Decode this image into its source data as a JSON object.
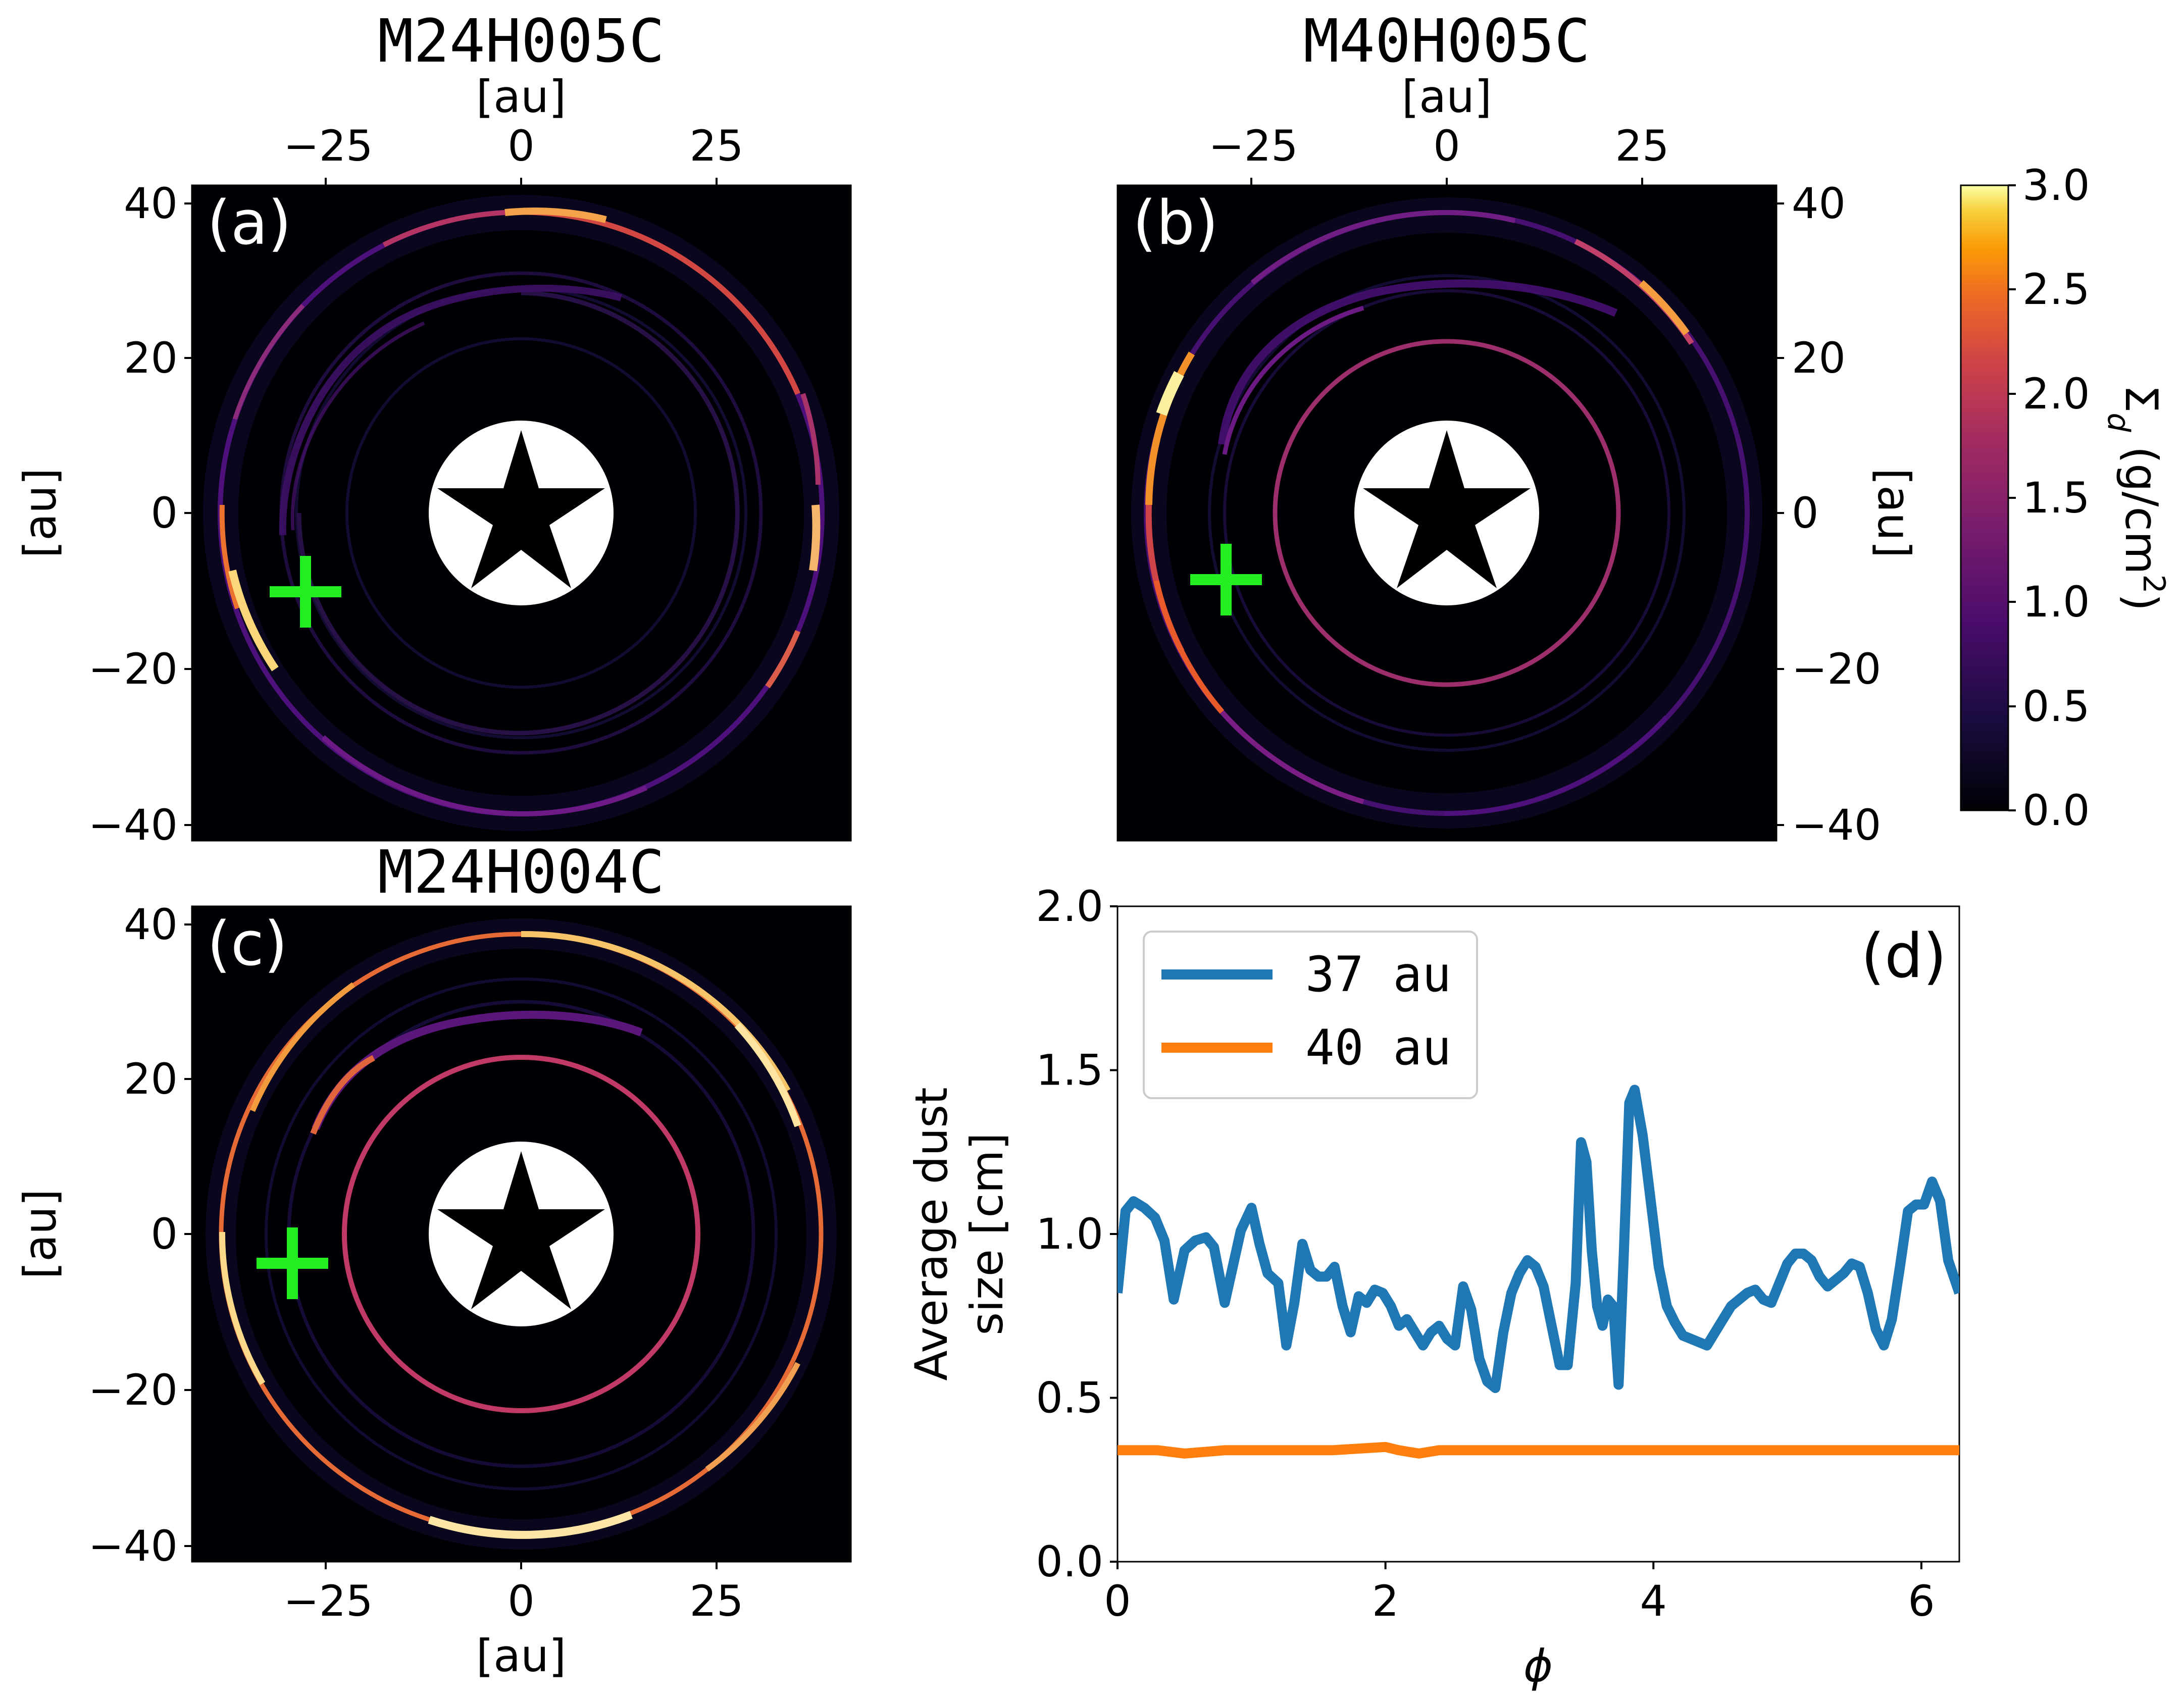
{
  "figure": {
    "panels": [
      {
        "id": "a",
        "label": "(a)",
        "title": "M24H005C",
        "type": "heatmap",
        "xlabel": "[au]",
        "ylabel": "[au]",
        "x_ticks": [
          "−25",
          "0",
          "25"
        ],
        "y_ticks": [
          "40",
          "20",
          "0",
          "−20",
          "−40"
        ],
        "marker": {
          "x": -27.5,
          "y": -10,
          "symbol": "+"
        },
        "planet_x": -27.5
      },
      {
        "id": "b",
        "label": "(b)",
        "title": "M40H005C",
        "type": "heatmap",
        "xlabel": "[au]",
        "ylabel": "[au]",
        "x_ticks": [
          "−25",
          "0",
          "25"
        ],
        "y_ticks": [
          "40",
          "20",
          "0",
          "−20",
          "−40"
        ],
        "marker": {
          "x": -28,
          "y": -8.5,
          "symbol": "+"
        }
      },
      {
        "id": "c",
        "label": "(c)",
        "title": "M24H004C",
        "type": "heatmap",
        "xlabel": "[au]",
        "ylabel": "[au]",
        "x_ticks": [
          "−25",
          "0",
          "25"
        ],
        "y_ticks": [
          "40",
          "20",
          "0",
          "−20",
          "−40"
        ],
        "marker": {
          "x": -29,
          "y": -3.5,
          "symbol": "+"
        }
      }
    ],
    "colorbar": {
      "label": "Σd (g/cm²)",
      "label_main": "Σ",
      "label_sub": "d",
      "label_rest": " (g/cm",
      "label_sup": "2",
      "label_end": ")",
      "min": 0.0,
      "max": 3.0,
      "ticks": [
        "0.0",
        "0.5",
        "1.0",
        "1.5",
        "2.0",
        "2.5",
        "3.0"
      ],
      "colormap": "inferno"
    }
  },
  "chart_data": {
    "type": "line",
    "label": "(d)",
    "xlabel": "ϕ",
    "ylabel_line1": "Average dust",
    "ylabel_line2": "size [cm]",
    "xlim": [
      0,
      6.283
    ],
    "ylim": [
      0.0,
      2.0
    ],
    "x_ticks": [
      "0",
      "2",
      "4",
      "6"
    ],
    "y_ticks": [
      "0.0",
      "0.5",
      "1.0",
      "1.5",
      "2.0"
    ],
    "legend_position": "top-left",
    "series": [
      {
        "name": "37 au",
        "color": "#1f77b4",
        "points": [
          [
            0.0,
            0.82
          ],
          [
            0.06,
            1.07
          ],
          [
            0.12,
            1.1
          ],
          [
            0.2,
            1.08
          ],
          [
            0.28,
            1.05
          ],
          [
            0.35,
            0.98
          ],
          [
            0.42,
            0.8
          ],
          [
            0.5,
            0.95
          ],
          [
            0.58,
            0.98
          ],
          [
            0.66,
            0.99
          ],
          [
            0.72,
            0.96
          ],
          [
            0.8,
            0.79
          ],
          [
            0.86,
            0.9
          ],
          [
            0.92,
            1.01
          ],
          [
            1.0,
            1.08
          ],
          [
            1.06,
            0.97
          ],
          [
            1.12,
            0.88
          ],
          [
            1.2,
            0.85
          ],
          [
            1.26,
            0.66
          ],
          [
            1.32,
            0.79
          ],
          [
            1.38,
            0.97
          ],
          [
            1.44,
            0.89
          ],
          [
            1.5,
            0.87
          ],
          [
            1.56,
            0.87
          ],
          [
            1.62,
            0.9
          ],
          [
            1.68,
            0.78
          ],
          [
            1.74,
            0.7
          ],
          [
            1.8,
            0.81
          ],
          [
            1.86,
            0.79
          ],
          [
            1.92,
            0.83
          ],
          [
            1.98,
            0.82
          ],
          [
            2.04,
            0.78
          ],
          [
            2.1,
            0.72
          ],
          [
            2.16,
            0.74
          ],
          [
            2.22,
            0.7
          ],
          [
            2.28,
            0.66
          ],
          [
            2.34,
            0.7
          ],
          [
            2.4,
            0.72
          ],
          [
            2.46,
            0.68
          ],
          [
            2.52,
            0.66
          ],
          [
            2.58,
            0.84
          ],
          [
            2.64,
            0.77
          ],
          [
            2.7,
            0.62
          ],
          [
            2.76,
            0.55
          ],
          [
            2.82,
            0.53
          ],
          [
            2.88,
            0.7
          ],
          [
            2.94,
            0.82
          ],
          [
            3.0,
            0.88
          ],
          [
            3.06,
            0.92
          ],
          [
            3.12,
            0.9
          ],
          [
            3.18,
            0.84
          ],
          [
            3.24,
            0.72
          ],
          [
            3.3,
            0.6
          ],
          [
            3.36,
            0.6
          ],
          [
            3.42,
            0.85
          ],
          [
            3.46,
            1.28
          ],
          [
            3.5,
            1.22
          ],
          [
            3.54,
            0.95
          ],
          [
            3.58,
            0.78
          ],
          [
            3.62,
            0.72
          ],
          [
            3.66,
            0.8
          ],
          [
            3.7,
            0.78
          ],
          [
            3.74,
            0.54
          ],
          [
            3.78,
            0.95
          ],
          [
            3.82,
            1.4
          ],
          [
            3.86,
            1.44
          ],
          [
            3.92,
            1.3
          ],
          [
            3.98,
            1.1
          ],
          [
            4.04,
            0.9
          ],
          [
            4.1,
            0.78
          ],
          [
            4.16,
            0.73
          ],
          [
            4.22,
            0.69
          ],
          [
            4.28,
            0.68
          ],
          [
            4.34,
            0.67
          ],
          [
            4.4,
            0.66
          ],
          [
            4.46,
            0.7
          ],
          [
            4.52,
            0.74
          ],
          [
            4.58,
            0.78
          ],
          [
            4.64,
            0.8
          ],
          [
            4.7,
            0.82
          ],
          [
            4.76,
            0.83
          ],
          [
            4.82,
            0.8
          ],
          [
            4.88,
            0.79
          ],
          [
            4.94,
            0.85
          ],
          [
            5.0,
            0.91
          ],
          [
            5.06,
            0.94
          ],
          [
            5.12,
            0.94
          ],
          [
            5.18,
            0.92
          ],
          [
            5.24,
            0.87
          ],
          [
            5.3,
            0.84
          ],
          [
            5.36,
            0.86
          ],
          [
            5.42,
            0.88
          ],
          [
            5.48,
            0.91
          ],
          [
            5.54,
            0.9
          ],
          [
            5.6,
            0.82
          ],
          [
            5.66,
            0.71
          ],
          [
            5.72,
            0.66
          ],
          [
            5.78,
            0.74
          ],
          [
            5.84,
            0.9
          ],
          [
            5.9,
            1.07
          ],
          [
            5.96,
            1.09
          ],
          [
            6.02,
            1.09
          ],
          [
            6.08,
            1.16
          ],
          [
            6.14,
            1.1
          ],
          [
            6.2,
            0.92
          ],
          [
            6.283,
            0.82
          ]
        ]
      },
      {
        "name": "40 au",
        "color": "#ff7f0e",
        "points": [
          [
            0.0,
            0.34
          ],
          [
            0.3,
            0.34
          ],
          [
            0.5,
            0.33
          ],
          [
            0.8,
            0.34
          ],
          [
            1.2,
            0.34
          ],
          [
            1.6,
            0.34
          ],
          [
            2.0,
            0.35
          ],
          [
            2.1,
            0.34
          ],
          [
            2.25,
            0.33
          ],
          [
            2.4,
            0.34
          ],
          [
            2.8,
            0.34
          ],
          [
            3.2,
            0.34
          ],
          [
            3.6,
            0.34
          ],
          [
            4.0,
            0.34
          ],
          [
            4.4,
            0.34
          ],
          [
            4.8,
            0.34
          ],
          [
            5.2,
            0.34
          ],
          [
            5.6,
            0.34
          ],
          [
            6.0,
            0.34
          ],
          [
            6.283,
            0.34
          ]
        ]
      }
    ]
  }
}
